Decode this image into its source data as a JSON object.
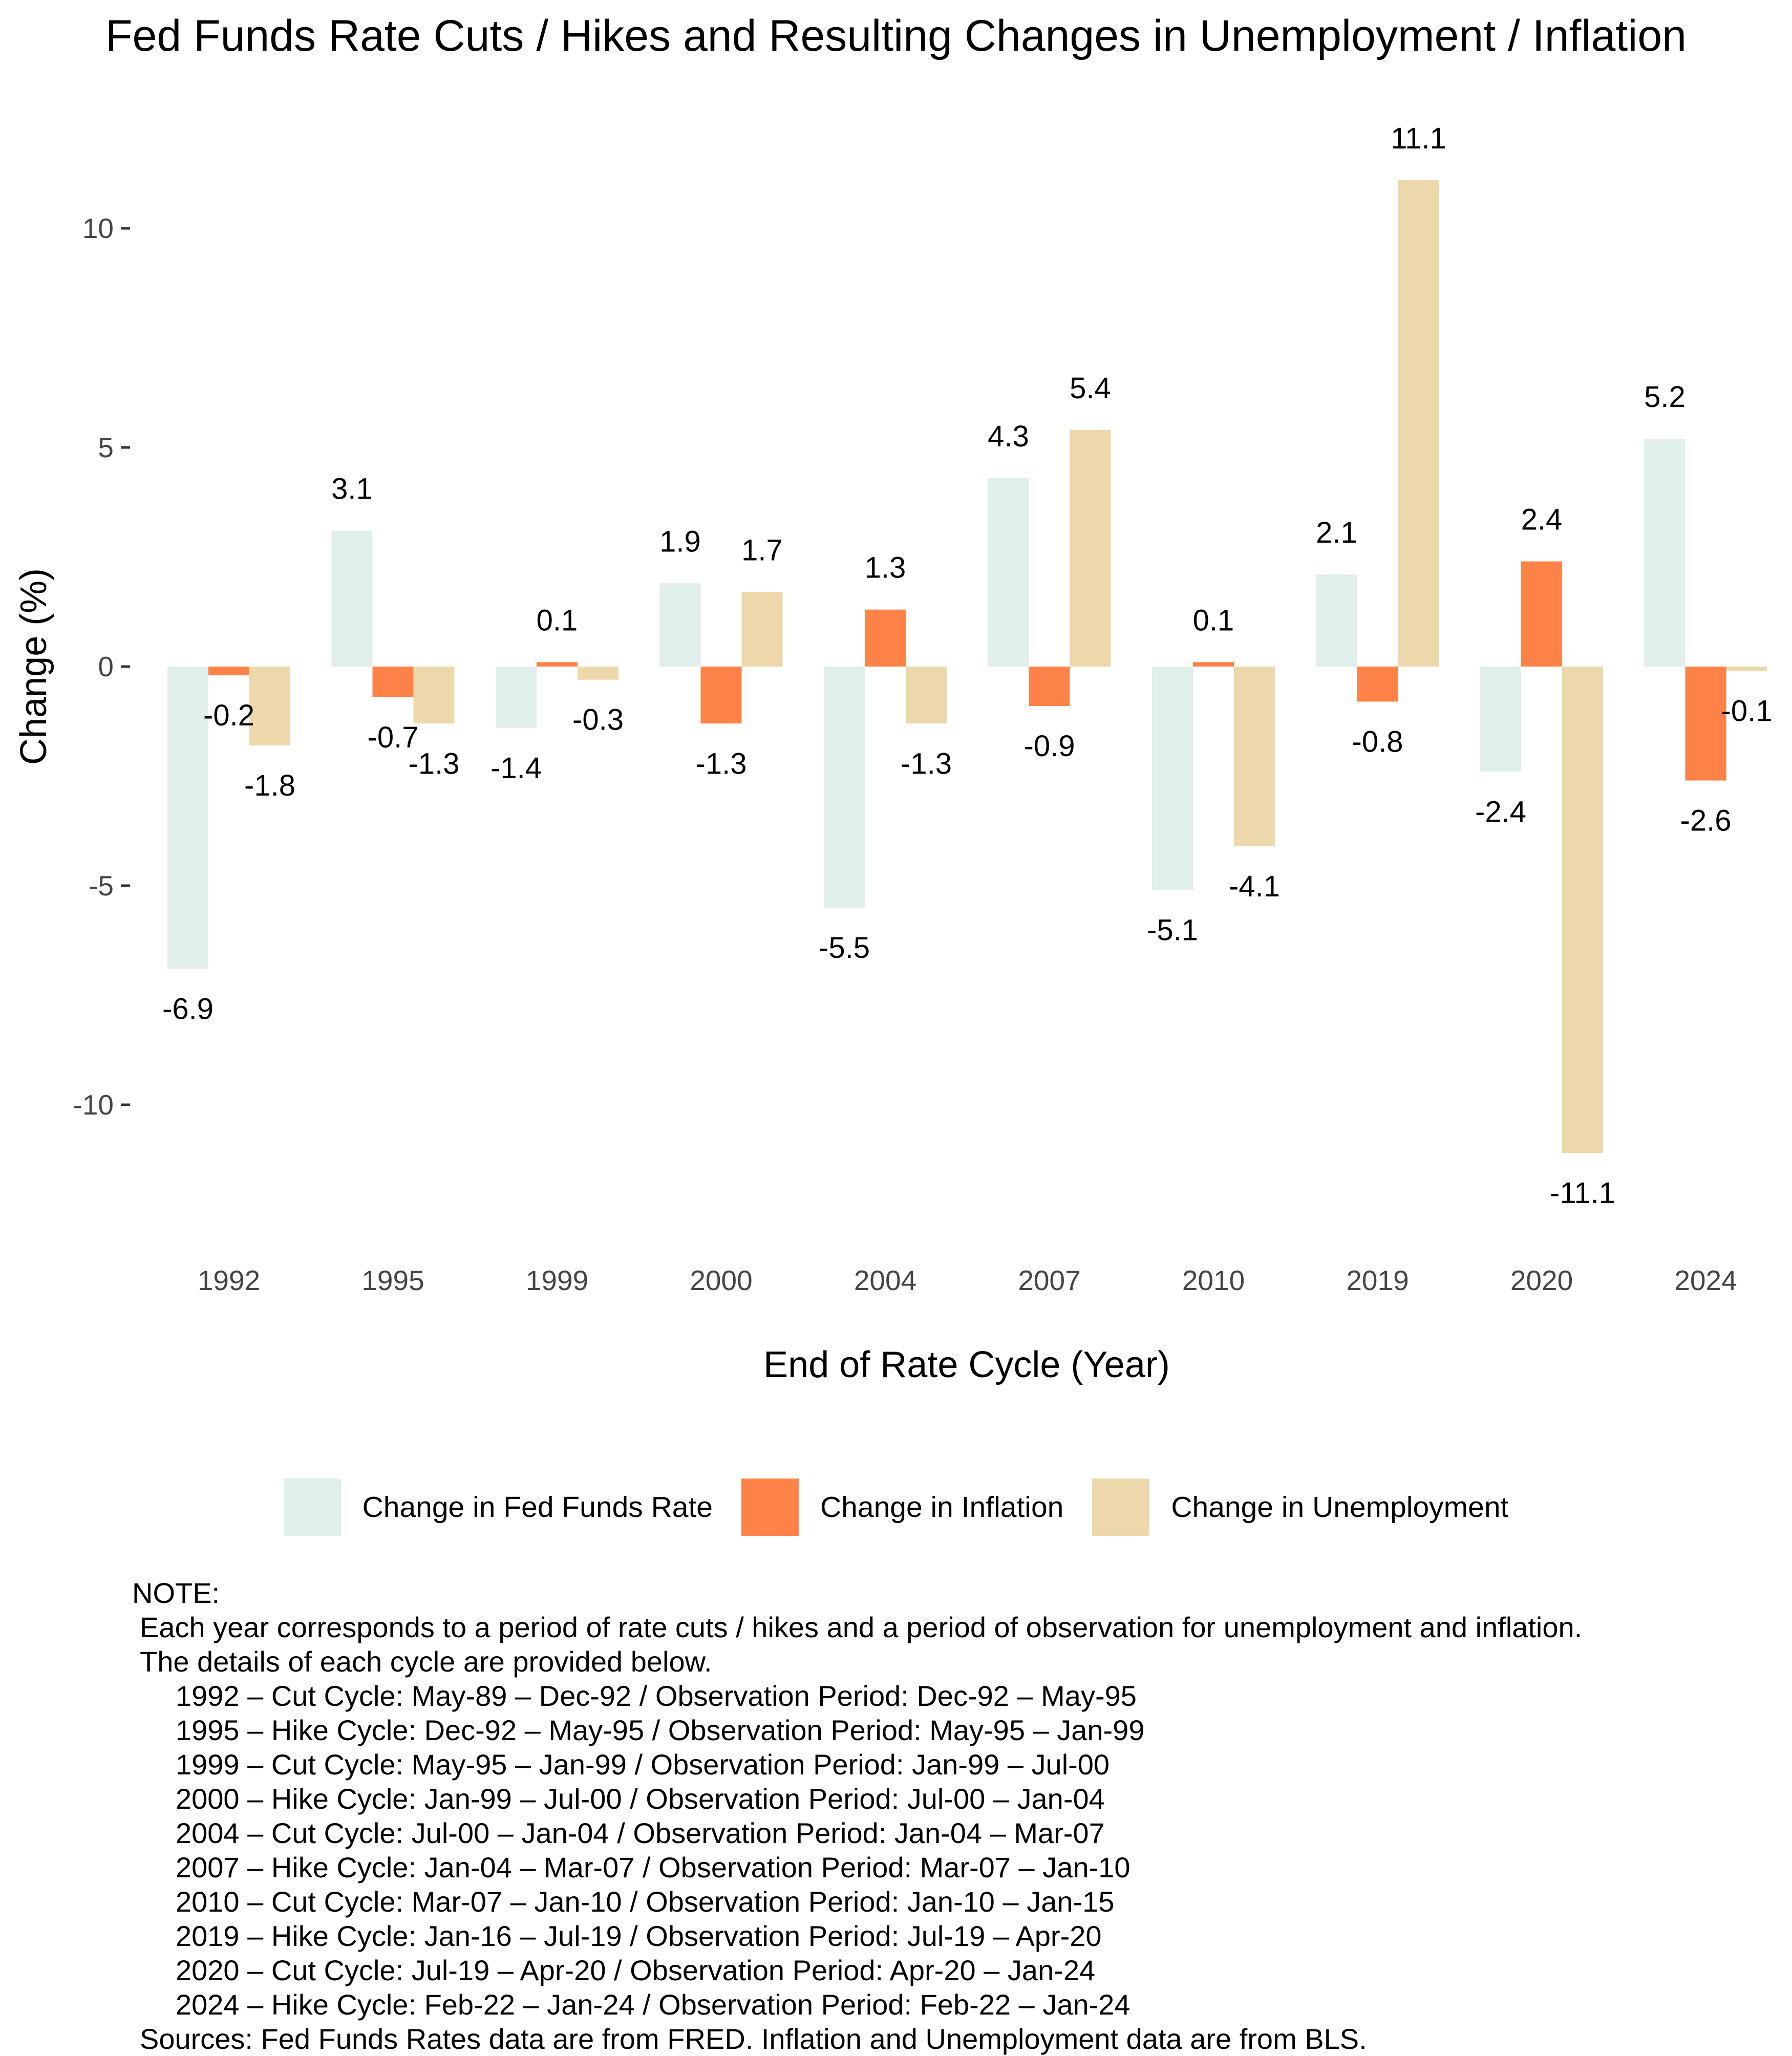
{
  "chart_data": {
    "type": "bar",
    "title": "Fed Funds Rate Cuts / Hikes and Resulting Changes in Unemployment / Inflation",
    "xlabel": "End of Rate Cycle (Year)",
    "ylabel": "Change (%)",
    "categories": [
      "1992",
      "1995",
      "1999",
      "2000",
      "2004",
      "2007",
      "2010",
      "2019",
      "2020",
      "2024"
    ],
    "series": [
      {
        "name": "Change in Fed Funds Rate",
        "color": "#e0eeec",
        "values": [
          -6.9,
          3.1,
          -1.4,
          1.9,
          -5.5,
          4.3,
          -5.1,
          2.1,
          -2.4,
          5.2
        ],
        "labels": [
          "-6.9",
          "3.1",
          "-1.4",
          "1.9",
          "-5.5",
          "4.3",
          "-5.1",
          "2.1",
          "-2.4",
          "5.2"
        ]
      },
      {
        "name": "Change in Inflation",
        "color": "#ff8349",
        "values": [
          -0.2,
          -0.7,
          0.1,
          -1.3,
          1.3,
          -0.9,
          0.1,
          -0.8,
          2.4,
          -2.6
        ],
        "labels": [
          "-0.2",
          "-0.7",
          "0.1",
          "-1.3",
          "1.3",
          "-0.9",
          "0.1",
          "-0.8",
          "2.4",
          "-2.6"
        ]
      },
      {
        "name": "Change in Unemployment",
        "color": "#edd8ac",
        "values": [
          -1.8,
          -1.3,
          -0.3,
          1.7,
          -1.3,
          5.4,
          -4.1,
          11.1,
          -11.1,
          -0.1
        ],
        "labels": [
          "-1.8",
          "-1.3",
          "-0.3",
          "1.7",
          "-1.3",
          "5.4",
          "-4.1",
          "11.1",
          "-11.1",
          "-0.1"
        ]
      }
    ],
    "y_ticks": [
      10,
      5,
      0,
      -5,
      -10
    ],
    "y_tick_labels": [
      "10",
      "5",
      "0",
      "-5",
      "-10"
    ],
    "ylim": [
      -12.9,
      12.3
    ],
    "grid": false,
    "legend": "bottom"
  },
  "notes": {
    "heading": "NOTE:",
    "intro": [
      "Each year corresponds to a period of rate cuts / hikes and a period of observation for unemployment and inflation.",
      "The details of each cycle are provided below."
    ],
    "cycles": [
      "1992 – Cut Cycle: May-89 – Dec-92 / Observation Period: Dec-92 – May-95",
      "1995 – Hike Cycle: Dec-92 – May-95 / Observation Period: May-95 – Jan-99",
      "1999 – Cut Cycle: May-95 – Jan-99 / Observation Period: Jan-99 – Jul-00",
      "2000 – Hike Cycle: Jan-99 – Jul-00 / Observation Period: Jul-00 – Jan-04",
      "2004 – Cut Cycle: Jul-00 – Jan-04 / Observation Period: Jan-04 – Mar-07",
      "2007 – Hike Cycle: Jan-04 – Mar-07 / Observation Period: Mar-07 – Jan-10",
      "2010 – Cut Cycle: Mar-07 – Jan-10 / Observation Period: Jan-10 – Jan-15",
      "2019 – Hike Cycle: Jan-16 – Jul-19 / Observation Period: Jul-19 – Apr-20",
      "2020 – Cut Cycle: Jul-19 – Apr-20 / Observation Period: Apr-20 – Jan-24",
      "2024 – Hike Cycle: Feb-22 – Jan-24 / Observation Period: Feb-22 – Jan-24"
    ],
    "sources": "Sources: Fed Funds Rates data are from FRED. Inflation and Unemployment data are from BLS."
  }
}
